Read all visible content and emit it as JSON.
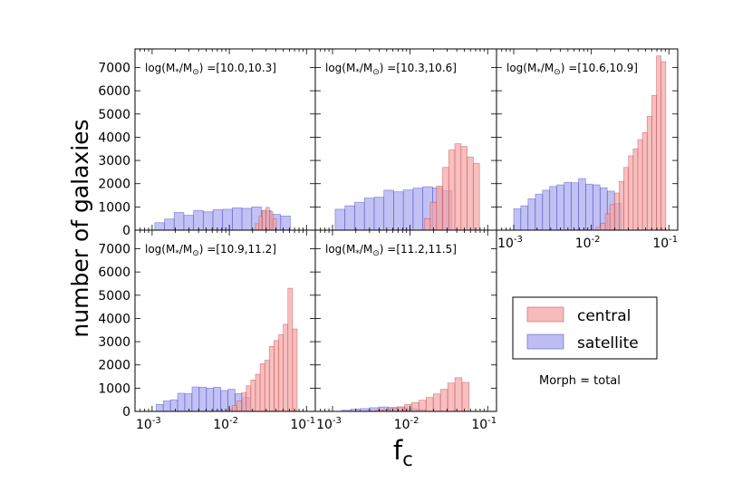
{
  "figure": {
    "ylabel": "number of galaxies",
    "xlabel_main": "f",
    "xlabel_sub": "c",
    "note": "Morph = total",
    "legend": [
      {
        "label": "central",
        "color": "#f4a4a4"
      },
      {
        "label": "satellite",
        "color": "#a7a7f0"
      }
    ],
    "colors": {
      "central": "#f4a4a4",
      "satellite": "#a7a7f0",
      "central_edge": "#c04040",
      "satellite_edge": "#4040c0"
    }
  },
  "chart_data": [
    {
      "type": "bar",
      "panel": "top-left",
      "label_parts": [
        "log(M",
        "*",
        "/M",
        "⊙",
        ") =[10.0,10.3]"
      ],
      "xscale": "log",
      "xlim": [
        0.0006,
        0.13
      ],
      "ylim": [
        0,
        7800
      ],
      "yticks": [
        0,
        1000,
        2000,
        3000,
        4000,
        5000,
        6000,
        7000
      ],
      "xticks": [],
      "series": [
        {
          "name": "satellite",
          "bin_width_log": 0.125,
          "bins": [
            [
              0.00125,
              320
            ],
            [
              0.00167,
              480
            ],
            [
              0.00223,
              760
            ],
            [
              0.00298,
              640
            ],
            [
              0.00398,
              850
            ],
            [
              0.00531,
              790
            ],
            [
              0.00709,
              880
            ],
            [
              0.00946,
              900
            ],
            [
              0.01263,
              960
            ],
            [
              0.01686,
              940
            ],
            [
              0.0225,
              1000
            ],
            [
              0.03003,
              840
            ],
            [
              0.04009,
              680
            ],
            [
              0.0535,
              610
            ]
          ]
        },
        {
          "name": "central",
          "bin_width_log": 0.045,
          "bins": [
            [
              0.023,
              280
            ],
            [
              0.0255,
              600
            ],
            [
              0.0283,
              860
            ],
            [
              0.0314,
              980
            ],
            [
              0.0348,
              800
            ],
            [
              0.0386,
              490
            ]
          ]
        }
      ]
    },
    {
      "type": "bar",
      "panel": "top-middle",
      "label_parts": [
        "log(M",
        "*",
        "/M",
        "⊙",
        ") =[10.3,10.6]"
      ],
      "xscale": "log",
      "xlim": [
        0.0006,
        0.13
      ],
      "ylim": [
        0,
        7800
      ],
      "yticks": [],
      "xticks": [],
      "series": [
        {
          "name": "satellite",
          "bin_width_log": 0.125,
          "bins": [
            [
              0.00125,
              900
            ],
            [
              0.00167,
              1050
            ],
            [
              0.00223,
              1200
            ],
            [
              0.00298,
              1380
            ],
            [
              0.00398,
              1420
            ],
            [
              0.00531,
              1720
            ],
            [
              0.00709,
              1650
            ],
            [
              0.00946,
              1730
            ],
            [
              0.01263,
              1810
            ],
            [
              0.01686,
              1870
            ],
            [
              0.0225,
              1820
            ],
            [
              0.03,
              1700
            ]
          ]
        },
        {
          "name": "central",
          "bin_width_log": 0.08,
          "bins": [
            [
              0.0167,
              500
            ],
            [
              0.02,
              1200
            ],
            [
              0.024,
              1900
            ],
            [
              0.0288,
              2700
            ],
            [
              0.0345,
              3450
            ],
            [
              0.0414,
              3720
            ],
            [
              0.0497,
              3600
            ],
            [
              0.0596,
              3150
            ],
            [
              0.0715,
              2880
            ]
          ]
        }
      ]
    },
    {
      "type": "bar",
      "panel": "top-right",
      "label_parts": [
        "log(M",
        "*",
        "/M",
        "⊙",
        ") =[10.6,10.9]"
      ],
      "xscale": "log",
      "xlim": [
        0.0006,
        0.13
      ],
      "ylim": [
        0,
        7800
      ],
      "yticks": [],
      "xticks": [
        {
          "mantissa": "10",
          "exp": "-3",
          "value": 0.001
        },
        {
          "mantissa": "10",
          "exp": "-2",
          "value": 0.01
        },
        {
          "mantissa": "10",
          "exp": "-1",
          "value": 0.1
        }
      ],
      "series": [
        {
          "name": "satellite",
          "bin_width_log": 0.09,
          "bins": [
            [
              0.00111,
              920
            ],
            [
              0.00137,
              1050
            ],
            [
              0.0017,
              1350
            ],
            [
              0.00211,
              1550
            ],
            [
              0.00261,
              1720
            ],
            [
              0.00323,
              1880
            ],
            [
              0.004,
              1950
            ],
            [
              0.00496,
              2060
            ],
            [
              0.00614,
              2040
            ],
            [
              0.00761,
              2220
            ],
            [
              0.00942,
              1980
            ],
            [
              0.01167,
              1950
            ],
            [
              0.01445,
              1820
            ],
            [
              0.0179,
              1680
            ],
            [
              0.02217,
              1150
            ]
          ]
        },
        {
          "name": "central",
          "bin_width_log": 0.06,
          "bins": [
            [
              0.0123,
              120
            ],
            [
              0.01412,
              300
            ],
            [
              0.01622,
              700
            ],
            [
              0.01862,
              1100
            ],
            [
              0.02138,
              1600
            ],
            [
              0.02455,
              2100
            ],
            [
              0.02818,
              2700
            ],
            [
              0.03236,
              3200
            ],
            [
              0.03715,
              3500
            ],
            [
              0.04266,
              3900
            ],
            [
              0.04898,
              4200
            ],
            [
              0.05623,
              4900
            ],
            [
              0.06457,
              5800
            ],
            [
              0.07413,
              7500
            ],
            [
              0.08511,
              7250
            ]
          ]
        }
      ]
    },
    {
      "type": "bar",
      "panel": "bottom-left",
      "label_parts": [
        "log(M",
        "*",
        "/M",
        "⊙",
        ") =[10.9,11.2]"
      ],
      "xscale": "log",
      "xlim": [
        0.0006,
        0.13
      ],
      "ylim": [
        0,
        7800
      ],
      "yticks": [
        0,
        1000,
        2000,
        3000,
        4000,
        5000,
        6000,
        7000
      ],
      "xticks": [
        {
          "mantissa": "10",
          "exp": "-3",
          "value": 0.001
        },
        {
          "mantissa": "10",
          "exp": "-2",
          "value": 0.01
        },
        {
          "mantissa": "10",
          "exp": "-1",
          "value": 0.1
        }
      ],
      "series": [
        {
          "name": "satellite",
          "bin_width_log": 0.09,
          "bins": [
            [
              0.00125,
              300
            ],
            [
              0.00155,
              450
            ],
            [
              0.00192,
              500
            ],
            [
              0.00238,
              780
            ],
            [
              0.00295,
              760
            ],
            [
              0.00365,
              1050
            ],
            [
              0.00453,
              1040
            ],
            [
              0.00561,
              1000
            ],
            [
              0.00695,
              1040
            ],
            [
              0.00862,
              900
            ],
            [
              0.01068,
              950
            ],
            [
              0.01324,
              760
            ],
            [
              0.01641,
              600
            ]
          ]
        },
        {
          "name": "central",
          "bin_width_log": 0.06,
          "bins": [
            [
              0.0102,
              100
            ],
            [
              0.01171,
              250
            ],
            [
              0.01345,
              450
            ],
            [
              0.01544,
              800
            ],
            [
              0.01773,
              1100
            ],
            [
              0.02036,
              1350
            ],
            [
              0.02338,
              1600
            ],
            [
              0.02685,
              2050
            ],
            [
              0.03083,
              2200
            ],
            [
              0.0354,
              2800
            ],
            [
              0.04065,
              3050
            ],
            [
              0.04667,
              3300
            ],
            [
              0.05359,
              3750
            ],
            [
              0.06154,
              5300
            ],
            [
              0.07067,
              3550
            ]
          ]
        }
      ]
    },
    {
      "type": "bar",
      "panel": "bottom-middle",
      "label_parts": [
        "log(M",
        "*",
        "/M",
        "⊙",
        ") =[11.2,11.5]"
      ],
      "xscale": "log",
      "xlim": [
        0.0006,
        0.13
      ],
      "ylim": [
        0,
        7800
      ],
      "yticks": [],
      "xticks": [
        {
          "mantissa": "10",
          "exp": "-3",
          "value": 0.001
        },
        {
          "mantissa": "10",
          "exp": "-2",
          "value": 0.01
        },
        {
          "mantissa": "10",
          "exp": "-1",
          "value": 0.1
        }
      ],
      "series": [
        {
          "name": "satellite",
          "bin_width_log": 0.12,
          "bins": [
            [
              0.0015,
              50
            ],
            [
              0.00198,
              100
            ],
            [
              0.00262,
              120
            ],
            [
              0.00345,
              160
            ],
            [
              0.00456,
              190
            ],
            [
              0.00602,
              170
            ],
            [
              0.00795,
              170
            ],
            [
              0.0105,
              120
            ],
            [
              0.01386,
              80
            ]
          ]
        },
        {
          "name": "central",
          "bin_width_log": 0.09,
          "bins": [
            [
              0.004,
              60
            ],
            [
              0.00495,
              80
            ],
            [
              0.00614,
              120
            ],
            [
              0.0076,
              200
            ],
            [
              0.00941,
              300
            ],
            [
              0.01165,
              380
            ],
            [
              0.01443,
              480
            ],
            [
              0.01787,
              600
            ],
            [
              0.02213,
              750
            ],
            [
              0.0274,
              950
            ],
            [
              0.03393,
              1220
            ],
            [
              0.04202,
              1450
            ],
            [
              0.05203,
              1250
            ]
          ]
        }
      ]
    }
  ]
}
